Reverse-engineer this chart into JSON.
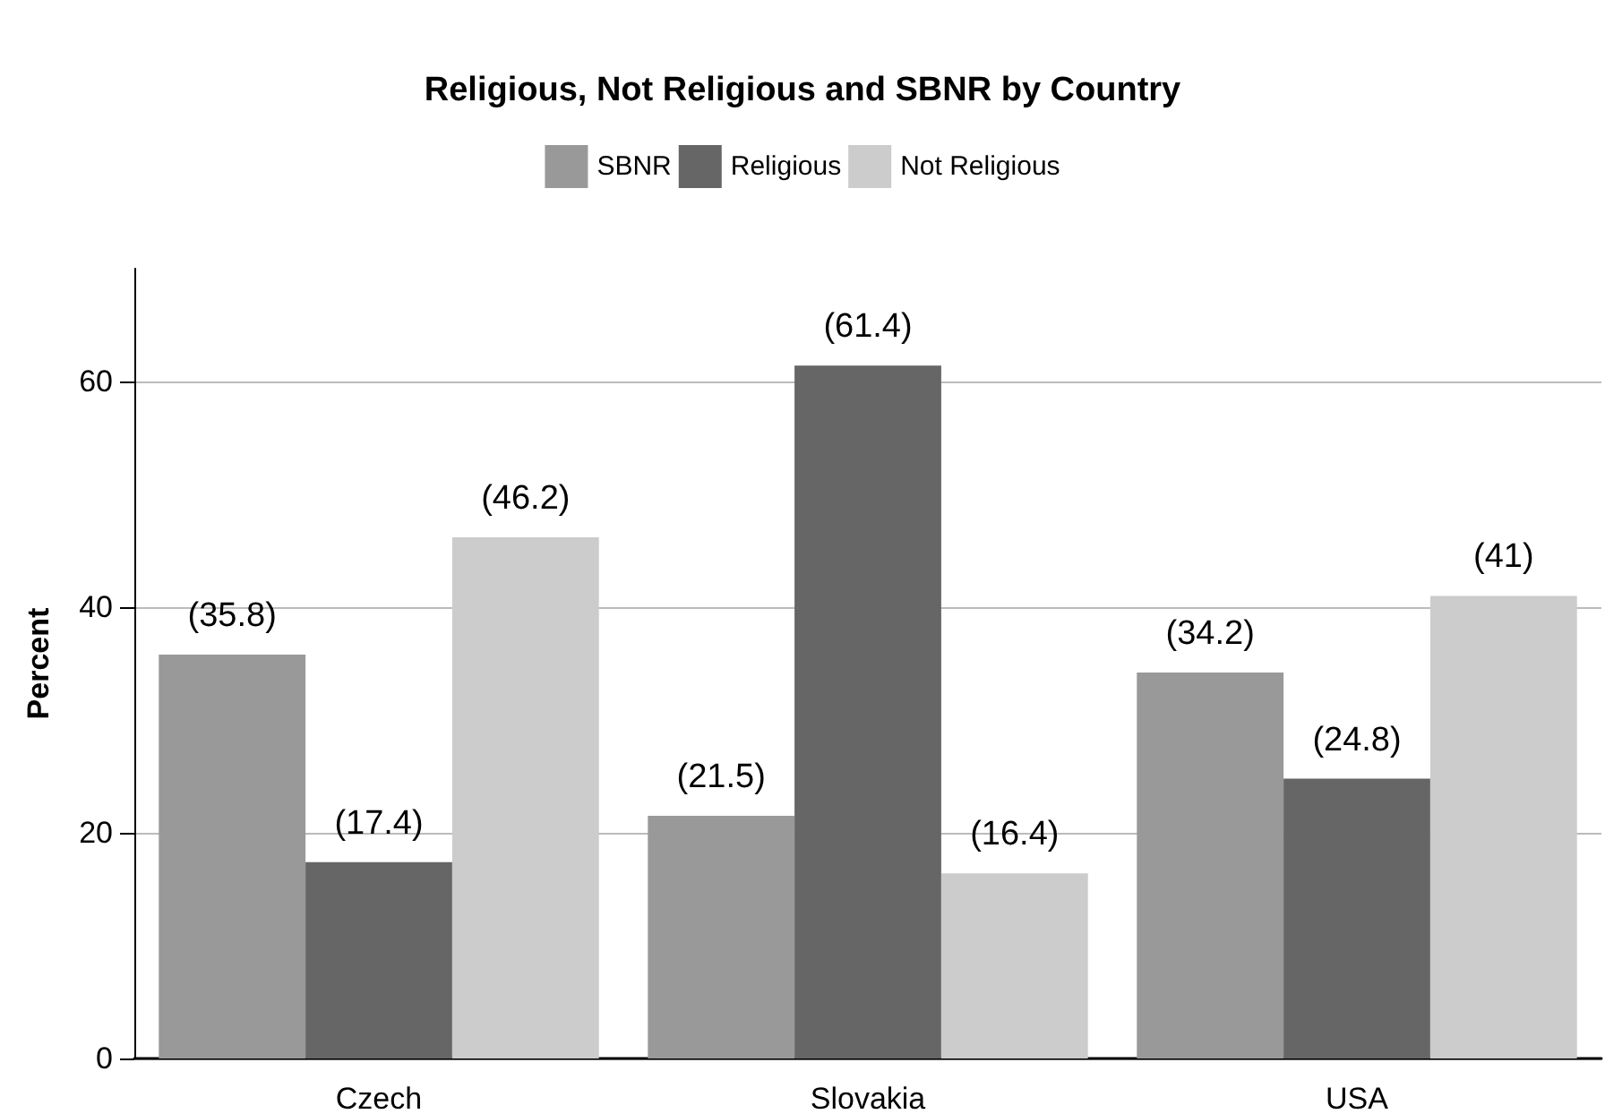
{
  "chart_data": {
    "type": "bar",
    "title": "Religious, Not Religious and SBNR by Country",
    "ylabel": "Percent",
    "categories": [
      "Czech",
      "Slovakia",
      "USA"
    ],
    "series": [
      {
        "name": "SBNR",
        "color": "#999999",
        "values": [
          35.8,
          21.5,
          34.2
        ],
        "value_labels": [
          "(35.8)",
          "(21.5)",
          "(34.2)"
        ]
      },
      {
        "name": "Religious",
        "color": "#666666",
        "values": [
          17.4,
          61.4,
          24.8
        ],
        "value_labels": [
          "(17.4)",
          "(61.4)",
          "(24.8)"
        ]
      },
      {
        "name": "Not Religious",
        "color": "#cccccc",
        "values": [
          46.2,
          16.4,
          41
        ],
        "value_labels": [
          "(46.2)",
          "(16.4)",
          "(41)"
        ]
      }
    ],
    "ylim": [
      0,
      70
    ],
    "yticks": [
      0,
      20,
      40,
      60
    ],
    "grid": "y",
    "legend": "top"
  }
}
